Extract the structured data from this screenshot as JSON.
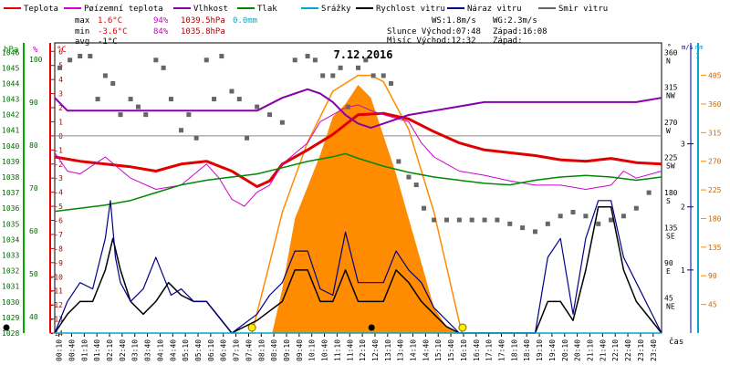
{
  "chart_data": {
    "type": "line",
    "title": "7.12.2016",
    "xlabel": "čas",
    "x_unit": "hours of day (0-24)",
    "x_ticks": [
      "00:10",
      "00:40",
      "01:10",
      "01:40",
      "02:10",
      "02:40",
      "03:10",
      "03:40",
      "04:10",
      "04:40",
      "05:10",
      "05:40",
      "06:10",
      "06:40",
      "07:10",
      "07:40",
      "08:10",
      "08:40",
      "09:10",
      "09:40",
      "10:10",
      "10:40",
      "11:10",
      "11:40",
      "12:10",
      "12:40",
      "13:10",
      "13:40",
      "14:10",
      "14:40",
      "15:10",
      "15:40",
      "16:10",
      "16:40",
      "17:10",
      "17:40",
      "18:10",
      "18:40",
      "19:10",
      "19:40",
      "20:10",
      "20:40",
      "21:10",
      "21:40",
      "22:10",
      "22:40",
      "23:10",
      "23:40"
    ],
    "legend": [
      {
        "label": "Teplota",
        "color": "#e00000"
      },
      {
        "label": "Pøízemní teplota",
        "color": "#cc00cc"
      },
      {
        "label": "Vlhkost",
        "color": "#8800aa"
      },
      {
        "label": "Tlak",
        "color": "#008800"
      },
      {
        "label": "Srážky",
        "color": "#00aacc"
      },
      {
        "label": "Rychlost vìtru",
        "color": "#000000"
      },
      {
        "label": "Náraz vìtru",
        "color": "#000088"
      },
      {
        "label": "Smìr vìtru",
        "color": "#666666"
      }
    ],
    "stats": {
      "max": {
        "label": "max",
        "temp": "1.6°C",
        "hum": "94%",
        "press": "1039.5hPa",
        "rain": "0.0mm"
      },
      "min": {
        "label": "min",
        "temp": "-3.6°C",
        "hum": "84%",
        "press": "1035.8hPa"
      },
      "avg": {
        "label": "avg",
        "temp": "-1°C"
      }
    },
    "info": {
      "ws": "WS:1.8m/s",
      "wg": "WG:2.3m/s",
      "sun": "Slunce Východ:07:48",
      "sunset": "Západ:16:08",
      "moon": "Mìsíc  Východ:12:32",
      "moonset": "Západ:"
    },
    "axes": {
      "hpa": {
        "label": "hPa",
        "ticks": [
          "1046",
          "1045",
          "1044",
          "1043",
          "1042",
          "1041",
          "1040",
          "1039",
          "1038",
          "1037",
          "1036",
          "1035",
          "1034",
          "1033",
          "1032",
          "1031",
          "1030",
          "1029",
          "1028"
        ],
        "range": [
          1028,
          1046.6
        ]
      },
      "pct": {
        "label": "%",
        "ticks": [
          "100",
          "90",
          "80",
          "70",
          "60",
          "50",
          "40"
        ],
        "range": [
          36.2,
          103.8
        ]
      },
      "degc": {
        "label": "°C",
        "ticks": [
          "6",
          "5",
          "4",
          "3",
          "2",
          "1",
          "0",
          "-1",
          "-2",
          "-3",
          "-4",
          "-5",
          "-6",
          "-7",
          "-8",
          "-9",
          "-10",
          "-11",
          "-12",
          "-13",
          "-14"
        ],
        "range": [
          -14,
          6.6
        ]
      },
      "dir": {
        "label": "°",
        "ticks": [
          "360",
          "315",
          "270",
          "225",
          "180",
          "135",
          "90",
          "45"
        ],
        "letters": [
          "N",
          "NW",
          "W",
          "SW",
          "S",
          "SE",
          "E",
          "NE"
        ],
        "range": [
          0,
          372
        ]
      },
      "ms": {
        "label": "m/s",
        "ticks": [
          "3",
          "2",
          "1"
        ],
        "range": [
          0,
          4.6
        ]
      },
      "mm": {
        "label": "mm",
        "ticks": [
          "1"
        ],
        "range": [
          0,
          1.04
        ]
      },
      "rad": {
        "label": "",
        "ticks": [
          "405",
          "360",
          "315",
          "270",
          "225",
          "180",
          "135",
          "90",
          "45"
        ],
        "range": [
          0,
          456
        ]
      }
    },
    "series": [
      {
        "name": "Teplota",
        "axis": "degc",
        "color": "#e00000",
        "x": [
          0,
          1,
          2,
          3,
          4,
          5,
          6,
          7,
          8,
          8.5,
          9,
          10,
          11,
          11.5,
          12,
          13,
          14,
          15,
          16,
          17,
          18,
          19,
          20,
          21,
          22,
          23,
          24
        ],
        "y": [
          -1.5,
          -1.8,
          -2.0,
          -2.2,
          -2.5,
          -2.0,
          -1.8,
          -2.5,
          -3.6,
          -3.2,
          -2,
          -1.0,
          0.1,
          0.8,
          1.5,
          1.6,
          1.2,
          0.3,
          -0.5,
          -1,
          -1.2,
          -1.4,
          -1.7,
          -1.8,
          -1.6,
          -1.9,
          -2
        ]
      },
      {
        "name": "Pøízemní teplota",
        "axis": "degc",
        "color": "#cc00cc",
        "x": [
          0,
          0.5,
          1,
          2,
          3,
          4,
          5,
          6,
          6.5,
          7,
          7.5,
          8,
          8.5,
          9,
          10,
          10.5,
          11,
          11.5,
          12,
          12.5,
          13,
          14,
          14.5,
          15,
          15.5,
          16,
          17,
          18,
          19,
          20,
          21,
          22,
          22.5,
          23,
          24
        ],
        "y": [
          -1.2,
          -2.5,
          -2.7,
          -1.5,
          -3,
          -3.8,
          -3.5,
          -2,
          -3,
          -4.5,
          -5,
          -4,
          -3.5,
          -2,
          -0.5,
          1,
          1.5,
          2,
          2.2,
          1.8,
          1.5,
          1,
          -0.5,
          -1.5,
          -2,
          -2.5,
          -2.8,
          -3.2,
          -3.5,
          -3.5,
          -3.8,
          -3.5,
          -2.5,
          -3,
          -2.5
        ]
      },
      {
        "name": "Vlhkost",
        "axis": "pct",
        "color": "#8800aa",
        "x": [
          0,
          0.5,
          1,
          3,
          5,
          7,
          8,
          9,
          9.5,
          10,
          10.5,
          11,
          11.5,
          12,
          12.5,
          13,
          13.5,
          14,
          15,
          16,
          17,
          18,
          19,
          20,
          21,
          22,
          23,
          24
        ],
        "y": [
          91,
          88,
          88,
          88,
          88,
          88,
          88,
          91,
          92,
          93,
          92,
          90,
          87,
          85,
          84,
          85,
          86,
          87,
          88,
          89,
          90,
          90,
          90,
          90,
          90,
          90,
          90,
          91
        ]
      },
      {
        "name": "Tlak",
        "axis": "hpa",
        "color": "#008800",
        "x": [
          0,
          1,
          2,
          3,
          4,
          5,
          6,
          7,
          8,
          9,
          10,
          11,
          11.5,
          12,
          13,
          14,
          15,
          16,
          17,
          18,
          19,
          20,
          21,
          22,
          23,
          24
        ],
        "y": [
          1035.8,
          1036,
          1036.2,
          1036.5,
          1037,
          1037.5,
          1037.8,
          1038,
          1038.2,
          1038.6,
          1039,
          1039.3,
          1039.5,
          1039.2,
          1038.7,
          1038.3,
          1038,
          1037.8,
          1037.6,
          1037.5,
          1037.8,
          1038,
          1038.1,
          1038,
          1037.8,
          1038
        ]
      },
      {
        "name": "Smìr vìtru",
        "axis": "dir",
        "color": "#666666",
        "x": [
          0.2,
          0.6,
          1.0,
          1.4,
          1.7,
          2.0,
          2.3,
          2.6,
          3.0,
          3.3,
          3.6,
          4.0,
          4.3,
          4.6,
          5.0,
          5.3,
          5.6,
          6.0,
          6.3,
          6.6,
          7.0,
          7.3,
          7.6,
          8.0,
          8.5,
          9.0,
          9.5,
          10.0,
          10.3,
          10.6,
          11.0,
          11.3,
          11.6,
          12.0,
          12.3,
          12.6,
          13.0,
          13.3,
          13.6,
          14.0,
          14.3,
          14.6,
          15.0,
          15.5,
          16.0,
          16.5,
          17.0,
          17.5,
          18.0,
          18.5,
          19.0,
          19.5,
          20.0,
          20.5,
          21.0,
          21.5,
          22.0,
          22.5,
          23.0,
          23.5
        ],
        "y": [
          340,
          350,
          355,
          355,
          300,
          330,
          320,
          280,
          300,
          290,
          280,
          350,
          340,
          300,
          260,
          280,
          250,
          350,
          300,
          355,
          310,
          300,
          250,
          290,
          280,
          270,
          350,
          355,
          350,
          330,
          330,
          340,
          290,
          340,
          350,
          330,
          330,
          320,
          220,
          200,
          190,
          160,
          145,
          145,
          145,
          145,
          145,
          145,
          140,
          135,
          130,
          140,
          150,
          155,
          150,
          140,
          145,
          150,
          160,
          180
        ]
      },
      {
        "name": "Rychlost vìtru",
        "axis": "ms",
        "color": "#000000",
        "x": [
          0,
          0.5,
          1,
          1.5,
          2,
          2.3,
          2.6,
          3,
          3.5,
          4,
          4.5,
          5,
          5.5,
          6,
          7,
          8,
          9,
          9.5,
          10,
          10.5,
          11,
          11.5,
          12,
          12.5,
          13,
          13.5,
          14,
          14.5,
          15,
          15.5,
          16,
          17,
          18,
          19,
          19.5,
          20,
          20.5,
          21,
          21.5,
          22,
          22.5,
          23,
          24
        ],
        "y": [
          0,
          0.3,
          0.5,
          0.5,
          1,
          1.5,
          1,
          0.5,
          0.3,
          0.5,
          0.8,
          0.6,
          0.5,
          0.5,
          0,
          0.2,
          0.5,
          1,
          1,
          0.5,
          0.5,
          1,
          0.5,
          0.5,
          0.5,
          1,
          0.8,
          0.5,
          0.3,
          0.1,
          0,
          0,
          0,
          0,
          0.5,
          0.5,
          0.2,
          1,
          2,
          2,
          1,
          0.5,
          0
        ]
      },
      {
        "name": "Náraz vìtru",
        "axis": "ms",
        "color": "#000088",
        "x": [
          0,
          0.5,
          1,
          1.5,
          2,
          2.2,
          2.4,
          2.6,
          3,
          3.5,
          4,
          4.3,
          4.6,
          5,
          5.5,
          6,
          7,
          8,
          8.5,
          9,
          9.5,
          10,
          10.5,
          11,
          11.5,
          12,
          12.5,
          13,
          13.5,
          14,
          14.5,
          15,
          16,
          17,
          18,
          19,
          19.5,
          20,
          20.5,
          21,
          21.5,
          22,
          22.5,
          23,
          24
        ],
        "y": [
          0,
          0.5,
          0.8,
          0.7,
          1.5,
          2.1,
          1.2,
          0.8,
          0.5,
          0.7,
          1.2,
          0.9,
          0.6,
          0.7,
          0.5,
          0.5,
          0,
          0.3,
          0.6,
          0.8,
          1.3,
          1.3,
          0.7,
          0.6,
          1.6,
          0.8,
          0.8,
          0.8,
          1.3,
          1.0,
          0.8,
          0.4,
          0,
          0,
          0,
          0,
          1.2,
          1.5,
          0.3,
          1.5,
          2.1,
          2.1,
          1.2,
          0.8,
          0
        ]
      },
      {
        "name": "Srážky",
        "axis": "mm",
        "color": "#00aacc",
        "x": [
          0,
          24
        ],
        "y": [
          0,
          0
        ]
      }
    ],
    "solar": {
      "axis": "rad",
      "area": {
        "color": "#ff8c00",
        "x": [
          8.6,
          9.0,
          9.5,
          10.0,
          10.5,
          11.0,
          11.5,
          12.0,
          12.5,
          13.0,
          13.5,
          14.0,
          14.5,
          15.0,
          15.5,
          16.0
        ],
        "y": [
          0,
          70,
          180,
          230,
          280,
          340,
          360,
          390,
          370,
          310,
          250,
          180,
          110,
          40,
          10,
          0
        ]
      },
      "curve": {
        "color": "#ff8c00",
        "x": [
          7.8,
          8.5,
          9,
          10,
          11,
          12,
          12.5,
          13,
          14,
          15,
          16.1
        ],
        "y": [
          0,
          110,
          190,
          300,
          380,
          405,
          405,
          395,
          320,
          190,
          0
        ]
      }
    },
    "sun_events": {
      "sunrise": 7.8,
      "sunset": 16.13,
      "moonrise": 12.53
    }
  }
}
